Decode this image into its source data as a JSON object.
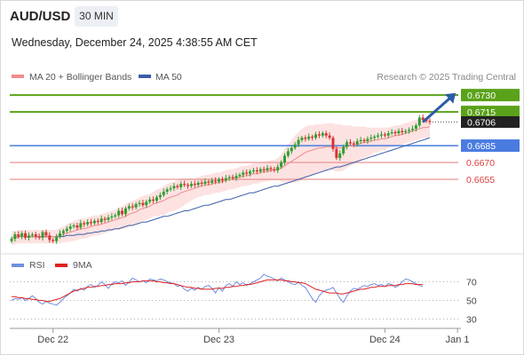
{
  "header": {
    "symbol": "AUD/USD",
    "timeframe": "30 MIN",
    "datetime": "Wednesday, December 24, 2025 4:38:55 AM CET"
  },
  "credit": "Research © 2025 Trading Central",
  "legend": [
    {
      "label": "MA 20 + Bollinger Bands",
      "color": "#f28b8b"
    },
    {
      "label": "MA 50",
      "color": "#3b5ea8"
    }
  ],
  "rsi_legend": [
    {
      "label": "RSI",
      "color": "#6f8fe0"
    },
    {
      "label": "9MA",
      "color": "#e02020"
    }
  ],
  "colors": {
    "up": "#2f9e2f",
    "down": "#d93333",
    "resistance": "#5aa21a",
    "pivot": "#4a7be0",
    "support": "#e88a8a",
    "last": "#222222",
    "arrow": "#2a5ca8"
  },
  "chart_data": [
    {
      "type": "line",
      "title": "AUD/USD",
      "x_ticks": [
        {
          "label": "Dec 22",
          "x": 12
        },
        {
          "label": "Dec 23",
          "x": 60
        },
        {
          "label": "Dec 24",
          "x": 108
        },
        {
          "label": "Jan 1",
          "x": 129
        }
      ],
      "xlim": [
        0,
        130
      ],
      "ylim": [
        0.6595,
        0.6738
      ],
      "levels": [
        {
          "label": "0.6730",
          "value": 0.673,
          "kind": "resistance"
        },
        {
          "label": "0.6715",
          "value": 0.6715,
          "kind": "resistance"
        },
        {
          "label": "0.6706",
          "value": 0.6706,
          "kind": "last"
        },
        {
          "label": "0.6685",
          "value": 0.6685,
          "kind": "pivot"
        },
        {
          "label": "0.6670",
          "value": 0.667,
          "kind": "support"
        },
        {
          "label": "0.6655",
          "value": 0.6655,
          "kind": "support"
        }
      ],
      "projection": {
        "from": [
          119,
          0.6706
        ],
        "to": [
          129,
          0.673
        ]
      },
      "price": [
        0.6602,
        0.6606,
        0.6604,
        0.6607,
        0.6603,
        0.6605,
        0.6606,
        0.6604,
        0.6603,
        0.6608,
        0.6605,
        0.6601,
        0.66,
        0.6604,
        0.6607,
        0.6609,
        0.6611,
        0.6613,
        0.6614,
        0.6612,
        0.6616,
        0.6615,
        0.6617,
        0.6616,
        0.6618,
        0.6617,
        0.662,
        0.6619,
        0.6621,
        0.6622,
        0.6623,
        0.6627,
        0.6624,
        0.6629,
        0.6631,
        0.663,
        0.6633,
        0.6634,
        0.6632,
        0.6635,
        0.6637,
        0.6636,
        0.6639,
        0.6641,
        0.6644,
        0.6646,
        0.6647,
        0.6649,
        0.6648,
        0.6651,
        0.665,
        0.6649,
        0.6651,
        0.665,
        0.6652,
        0.6651,
        0.6653,
        0.6652,
        0.6654,
        0.6653,
        0.6655,
        0.6654,
        0.6656,
        0.6657,
        0.6656,
        0.6658,
        0.6659,
        0.6661,
        0.666,
        0.6662,
        0.6663,
        0.6662,
        0.6664,
        0.6663,
        0.6665,
        0.6664,
        0.6663,
        0.6666,
        0.667,
        0.6676,
        0.668,
        0.6683,
        0.6686,
        0.669,
        0.6692,
        0.6691,
        0.6693,
        0.6692,
        0.6695,
        0.6694,
        0.6696,
        0.6694,
        0.6692,
        0.6682,
        0.6674,
        0.6678,
        0.6684,
        0.6688,
        0.6687,
        0.6686,
        0.6689,
        0.669,
        0.6689,
        0.6691,
        0.6692,
        0.6693,
        0.6694,
        0.6695,
        0.6694,
        0.6696,
        0.6697,
        0.6696,
        0.6698,
        0.6697,
        0.6698,
        0.6699,
        0.67,
        0.6703,
        0.671,
        0.6708,
        0.6707,
        0.6706
      ],
      "ma20": [
        0.6603,
        0.6603,
        0.6604,
        0.6604,
        0.6604,
        0.6604,
        0.6604,
        0.6604,
        0.6604,
        0.6604,
        0.6604,
        0.6604,
        0.6604,
        0.6604,
        0.6605,
        0.6606,
        0.6607,
        0.6608,
        0.6609,
        0.661,
        0.6611,
        0.6611,
        0.6612,
        0.6613,
        0.6614,
        0.6614,
        0.6615,
        0.6616,
        0.6617,
        0.6618,
        0.6619,
        0.662,
        0.6621,
        0.6622,
        0.6624,
        0.6625,
        0.6626,
        0.6628,
        0.6629,
        0.663,
        0.6631,
        0.6633,
        0.6634,
        0.6635,
        0.6636,
        0.6638,
        0.6639,
        0.664,
        0.6641,
        0.6643,
        0.6644,
        0.6645,
        0.6646,
        0.6647,
        0.6648,
        0.6649,
        0.665,
        0.665,
        0.6651,
        0.6652,
        0.6652,
        0.6653,
        0.6654,
        0.6655,
        0.6655,
        0.6656,
        0.6657,
        0.6658,
        0.6658,
        0.6659,
        0.666,
        0.666,
        0.6661,
        0.6662,
        0.6662,
        0.6663,
        0.6663,
        0.6664,
        0.6665,
        0.6667,
        0.6669,
        0.6671,
        0.6673,
        0.6675,
        0.6677,
        0.6679,
        0.668,
        0.6681,
        0.6682,
        0.6683,
        0.6683,
        0.6684,
        0.6684,
        0.6684,
        0.6683,
        0.6683,
        0.6683,
        0.6684,
        0.6685,
        0.6685,
        0.6686,
        0.6687,
        0.6688,
        0.6688,
        0.6689,
        0.669,
        0.669,
        0.6691,
        0.6691,
        0.6692,
        0.6693,
        0.6694,
        0.6694,
        0.6695,
        0.6696,
        0.6697,
        0.6698,
        0.6699,
        0.67,
        0.6701,
        0.6701,
        0.6702
      ],
      "ma50": [
        0.6603,
        0.6603,
        0.6604,
        0.6604,
        0.6604,
        0.6604,
        0.6604,
        0.6604,
        0.6604,
        0.6604,
        0.6604,
        0.6604,
        0.6604,
        0.6604,
        0.6604,
        0.6604,
        0.6605,
        0.6605,
        0.6605,
        0.6606,
        0.6606,
        0.6606,
        0.6607,
        0.6607,
        0.6608,
        0.6608,
        0.6609,
        0.6609,
        0.661,
        0.661,
        0.6611,
        0.6611,
        0.6612,
        0.6613,
        0.6614,
        0.6614,
        0.6615,
        0.6616,
        0.6617,
        0.6617,
        0.6618,
        0.6619,
        0.662,
        0.6621,
        0.6622,
        0.6622,
        0.6623,
        0.6624,
        0.6625,
        0.6626,
        0.6627,
        0.6627,
        0.6628,
        0.6629,
        0.663,
        0.6631,
        0.6632,
        0.6632,
        0.6633,
        0.6634,
        0.6635,
        0.6636,
        0.6637,
        0.6637,
        0.6638,
        0.6639,
        0.664,
        0.6641,
        0.6642,
        0.6643,
        0.6643,
        0.6644,
        0.6645,
        0.6646,
        0.6647,
        0.6648,
        0.6649,
        0.6649,
        0.665,
        0.6651,
        0.6652,
        0.6653,
        0.6654,
        0.6655,
        0.6656,
        0.6657,
        0.6658,
        0.6659,
        0.666,
        0.6661,
        0.6662,
        0.6663,
        0.6664,
        0.6665,
        0.6666,
        0.6666,
        0.6667,
        0.6668,
        0.6669,
        0.667,
        0.6671,
        0.6672,
        0.6673,
        0.6674,
        0.6675,
        0.6676,
        0.6677,
        0.6678,
        0.6679,
        0.668,
        0.6681,
        0.6682,
        0.6683,
        0.6684,
        0.6685,
        0.6686,
        0.6687,
        0.6688,
        0.6689,
        0.669,
        0.6691,
        0.6692
      ],
      "band_width": [
        0.0006,
        0.0006,
        0.0006,
        0.0006,
        0.0006,
        0.0006,
        0.0006,
        0.0006,
        0.0006,
        0.0006,
        0.0006,
        0.0006,
        0.0006,
        0.0006,
        0.0007,
        0.0007,
        0.0008,
        0.0008,
        0.0009,
        0.0009,
        0.0009,
        0.0009,
        0.0009,
        0.0009,
        0.0009,
        0.0009,
        0.0009,
        0.0009,
        0.0009,
        0.0009,
        0.0009,
        0.001,
        0.001,
        0.0011,
        0.0011,
        0.0011,
        0.0011,
        0.0011,
        0.0011,
        0.0011,
        0.0011,
        0.0011,
        0.0012,
        0.0012,
        0.0013,
        0.0013,
        0.0013,
        0.0013,
        0.0013,
        0.0013,
        0.0012,
        0.0011,
        0.001,
        0.0009,
        0.0009,
        0.0009,
        0.0009,
        0.0009,
        0.0009,
        0.0009,
        0.0009,
        0.0009,
        0.0009,
        0.0009,
        0.0009,
        0.0009,
        0.0009,
        0.0009,
        0.0009,
        0.0009,
        0.0009,
        0.0009,
        0.0009,
        0.0009,
        0.0009,
        0.0009,
        0.0009,
        0.001,
        0.0012,
        0.0015,
        0.0017,
        0.0019,
        0.0021,
        0.0022,
        0.0023,
        0.0023,
        0.0023,
        0.0022,
        0.0022,
        0.0021,
        0.0021,
        0.0021,
        0.0021,
        0.0021,
        0.0021,
        0.0021,
        0.002,
        0.0019,
        0.0018,
        0.0017,
        0.0016,
        0.0015,
        0.0014,
        0.0013,
        0.0012,
        0.0011,
        0.0011,
        0.001,
        0.001,
        0.0009,
        0.0009,
        0.0009,
        0.0009,
        0.0009,
        0.0009,
        0.0009,
        0.0009,
        0.0009,
        0.0009,
        0.0009,
        0.0009,
        0.0009
      ]
    },
    {
      "type": "line",
      "title": "RSI",
      "ylim": [
        20,
        80
      ],
      "y_ticks": [
        70,
        50,
        30
      ],
      "rsi": [
        50,
        52,
        51,
        53,
        50,
        52,
        55,
        52,
        48,
        46,
        49,
        47,
        46,
        45,
        48,
        52,
        55,
        58,
        62,
        60,
        63,
        61,
        65,
        67,
        64,
        66,
        70,
        67,
        63,
        68,
        70,
        69,
        71,
        66,
        70,
        74,
        72,
        70,
        71,
        69,
        73,
        72,
        71,
        73,
        72,
        70,
        69,
        68,
        65,
        66,
        62,
        60,
        63,
        61,
        64,
        62,
        65,
        66,
        63,
        58,
        64,
        60,
        66,
        68,
        65,
        70,
        67,
        69,
        66,
        68,
        70,
        72,
        74,
        78,
        76,
        75,
        73,
        71,
        74,
        72,
        70,
        68,
        67,
        70,
        66,
        64,
        58,
        52,
        48,
        55,
        59,
        61,
        62,
        64,
        58,
        52,
        48,
        55,
        60,
        63,
        62,
        64,
        66,
        65,
        67,
        68,
        66,
        67,
        65,
        68,
        67,
        64,
        66,
        70,
        73,
        72,
        70,
        68,
        66,
        65
      ],
      "ma9": [
        54,
        54,
        53,
        53,
        52,
        52,
        51,
        51,
        50,
        50,
        49,
        49,
        50,
        51,
        52,
        54,
        56,
        58,
        60,
        61,
        62,
        63,
        64,
        64,
        65,
        65,
        66,
        66,
        67,
        67,
        68,
        68,
        68,
        69,
        69,
        70,
        70,
        70,
        71,
        71,
        71,
        71,
        70,
        70,
        69,
        69,
        68,
        68,
        67,
        66,
        65,
        64,
        64,
        63,
        63,
        62,
        62,
        62,
        62,
        63,
        63,
        63,
        64,
        64,
        65,
        65,
        66,
        66,
        67,
        67,
        68,
        69,
        70,
        71,
        72,
        72,
        72,
        72,
        72,
        71,
        71,
        70,
        70,
        69,
        69,
        68,
        66,
        64,
        62,
        61,
        60,
        59,
        58,
        58,
        58,
        57,
        57,
        58,
        59,
        60,
        61,
        62,
        62,
        63,
        64,
        64,
        65,
        65,
        65,
        66,
        66,
        66,
        67,
        67,
        68,
        68,
        68,
        67,
        67,
        67
      ]
    }
  ]
}
